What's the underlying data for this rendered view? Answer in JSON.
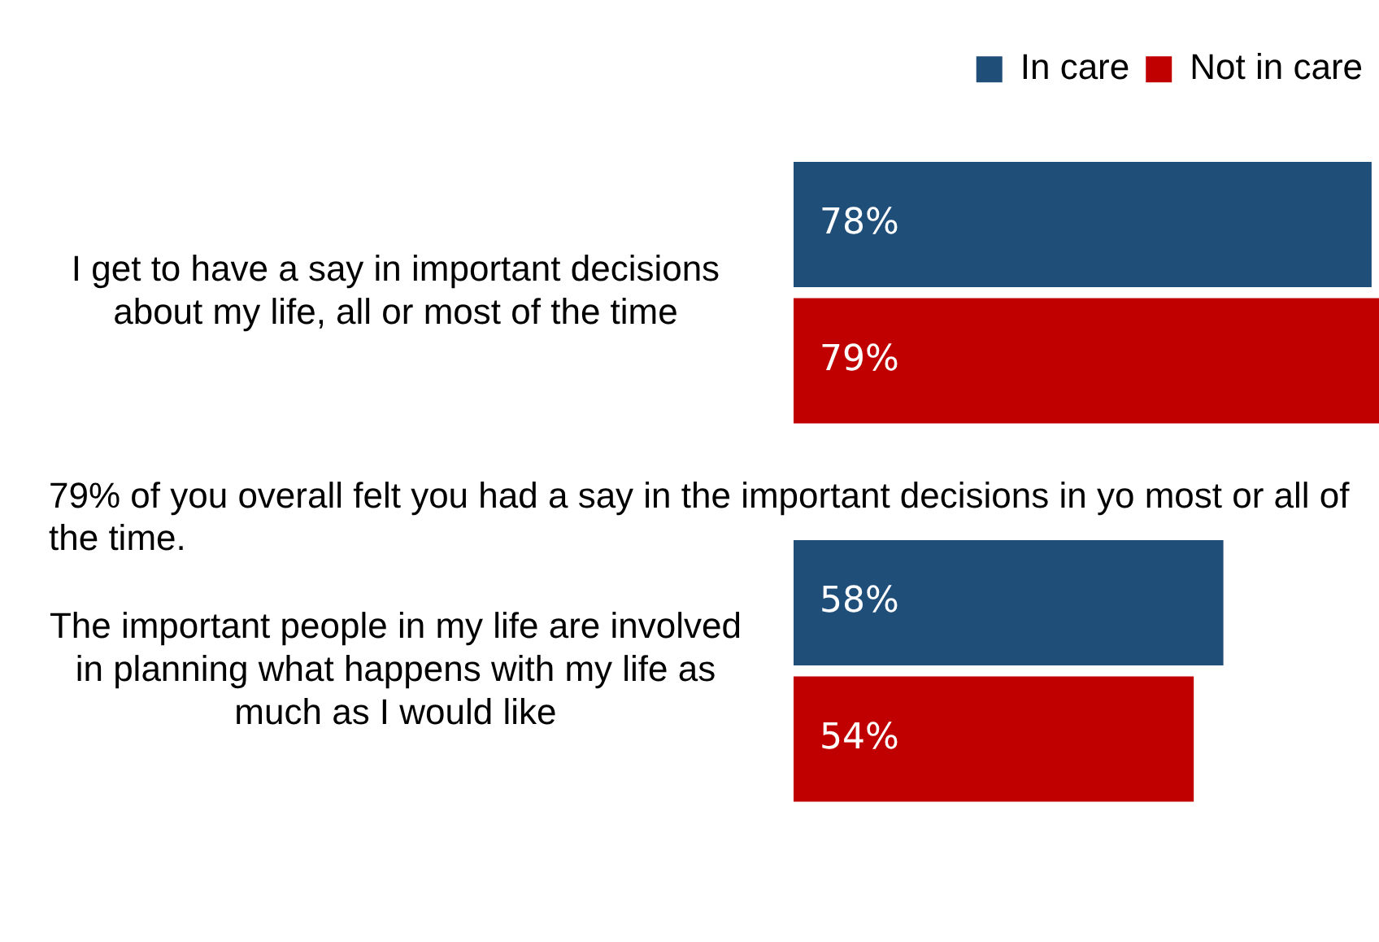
{
  "chart_data": {
    "type": "bar",
    "orientation": "horizontal",
    "categories": [
      "I get to have a say in important decisions about my life, all or most of the time",
      "The important people in my life are involved in planning what happens with my life as much as I would like"
    ],
    "series": [
      {
        "name": "In care",
        "color": "#1f4e79",
        "values": [
          78,
          58
        ],
        "value_labels": [
          "78%",
          "58%"
        ]
      },
      {
        "name": "Not in care",
        "color": "#c00000",
        "values": [
          79,
          54
        ],
        "value_labels": [
          "79%",
          "54%"
        ]
      }
    ],
    "legend": "top right",
    "grid": false,
    "annotations": [
      "79% of you overall felt you had a say in the important decisions in yo most or all of the time."
    ]
  }
}
